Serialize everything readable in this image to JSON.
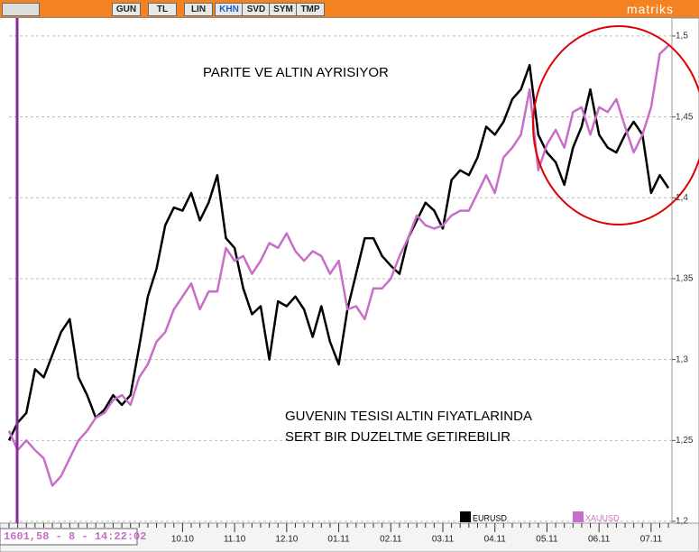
{
  "toolbar": {
    "buttons": [
      "GUN",
      "TL",
      "LIN",
      "KHN",
      "SVD",
      "SYM",
      "TMP"
    ],
    "brand": "matriks"
  },
  "info": "1601,58 - 8 - 14:22:02",
  "chart_data": {
    "type": "line",
    "annotations": [
      "PARITE VE ALTIN AYRISIYOR",
      "GUVENIN TESISI ALTIN FIYATLARINDA",
      "SERT BIR DUZELTME GETIREBILIR"
    ],
    "categories": [
      null,
      null,
      null,
      null,
      null,
      null,
      null,
      null,
      null,
      null,
      null,
      null,
      null,
      null,
      null,
      null,
      null,
      null,
      null,
      null,
      "10.10",
      null,
      null,
      null,
      null,
      null,
      "11.10",
      null,
      null,
      null,
      null,
      null,
      "12.10",
      null,
      null,
      null,
      null,
      null,
      "01.11",
      null,
      null,
      null,
      null,
      null,
      "02.11",
      null,
      null,
      null,
      null,
      null,
      "03.11",
      null,
      null,
      null,
      null,
      null,
      "04.11",
      null,
      null,
      null,
      null,
      null,
      "05.11",
      null,
      null,
      null,
      null,
      null,
      "06.11",
      null,
      null,
      null,
      null,
      null,
      "07.11",
      null,
      null
    ],
    "series": [
      {
        "name": "EURUSD",
        "color": "#000000",
        "values": [
          1.25,
          1.261,
          1.267,
          1.294,
          1.289,
          1.303,
          1.317,
          1.325,
          1.289,
          1.278,
          1.264,
          1.269,
          1.278,
          1.272,
          1.278,
          1.308,
          1.339,
          1.356,
          1.383,
          1.394,
          1.392,
          1.403,
          1.386,
          1.397,
          1.414,
          1.375,
          1.369,
          1.344,
          1.328,
          1.333,
          1.3,
          1.336,
          1.333,
          1.339,
          1.331,
          1.314,
          1.333,
          1.311,
          1.297,
          1.331,
          1.353,
          1.375,
          1.375,
          1.364,
          1.358,
          1.353,
          1.375,
          1.386,
          1.397,
          1.392,
          1.381,
          1.411,
          1.417,
          1.414,
          1.425,
          1.444,
          1.439,
          1.447,
          1.461,
          1.467,
          1.482,
          1.439,
          1.428,
          1.422,
          1.408,
          1.431,
          1.444,
          1.467,
          1.439,
          1.431,
          1.428,
          1.439,
          1.447,
          1.439,
          1.403,
          1.414,
          1.406
        ]
      },
      {
        "name": "XAUUSD",
        "color": "#c86ec8",
        "values": [
          1.256,
          1.244,
          1.25,
          1.244,
          1.239,
          1.222,
          1.228,
          1.239,
          1.25,
          1.256,
          1.264,
          1.267,
          1.275,
          1.278,
          1.272,
          1.289,
          1.297,
          1.311,
          1.317,
          1.331,
          1.339,
          1.347,
          1.331,
          1.342,
          1.342,
          1.369,
          1.361,
          1.364,
          1.353,
          1.361,
          1.372,
          1.369,
          1.378,
          1.367,
          1.361,
          1.367,
          1.364,
          1.353,
          1.361,
          1.331,
          1.333,
          1.325,
          1.344,
          1.344,
          1.35,
          1.364,
          1.375,
          1.389,
          1.383,
          1.381,
          1.383,
          1.389,
          1.392,
          1.392,
          1.403,
          1.414,
          1.403,
          1.425,
          1.431,
          1.439,
          1.467,
          1.417,
          1.433,
          1.442,
          1.431,
          1.453,
          1.456,
          1.439,
          1.456,
          1.453,
          1.461,
          1.444,
          1.428,
          1.439,
          1.456,
          1.489,
          1.494
        ]
      }
    ],
    "ylim": [
      1.2,
      1.51
    ],
    "yticks": [
      {
        "value": 1.2,
        "label": "1,2"
      },
      {
        "value": 1.25,
        "label": "1,25"
      },
      {
        "value": 1.3,
        "label": "1,3"
      },
      {
        "value": 1.35,
        "label": "1,35"
      },
      {
        "value": 1.4,
        "label": "1,4"
      },
      {
        "value": 1.45,
        "label": "1,45"
      },
      {
        "value": 1.5,
        "label": "1,5"
      }
    ],
    "grid": true
  }
}
